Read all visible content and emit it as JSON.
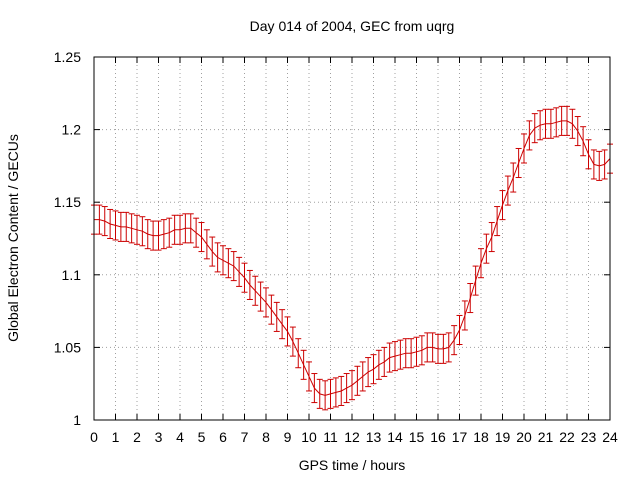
{
  "chart_data": {
    "type": "line",
    "title": "Day 014 of 2004, GEC from uqrg",
    "xlabel": "GPS time / hours",
    "ylabel": "Global Electron Content / GECUs",
    "xlim": [
      0,
      24
    ],
    "ylim": [
      1,
      1.25
    ],
    "xticks": [
      "0",
      "1",
      "2",
      "3",
      "4",
      "5",
      "6",
      "7",
      "8",
      "9",
      "10",
      "11",
      "12",
      "13",
      "14",
      "15",
      "16",
      "17",
      "18",
      "19",
      "20",
      "21",
      "22",
      "23",
      "24"
    ],
    "yticks": [
      "1",
      "1.05",
      "1.1",
      "1.15",
      "1.2",
      "1.25"
    ],
    "grid": true,
    "series_color": "#cc0000",
    "series": [
      {
        "x": [
          0,
          0.25,
          0.5,
          0.75,
          1,
          1.25,
          1.5,
          1.75,
          2,
          2.25,
          2.5,
          2.75,
          3,
          3.25,
          3.5,
          3.75,
          4,
          4.25,
          4.5,
          4.75,
          5,
          5.25,
          5.5,
          5.75,
          6,
          6.25,
          6.5,
          6.75,
          7,
          7.25,
          7.5,
          7.75,
          8,
          8.25,
          8.5,
          8.75,
          9,
          9.25,
          9.5,
          9.75,
          10,
          10.25,
          10.5,
          10.75,
          11,
          11.25,
          11.5,
          11.75,
          12,
          12.25,
          12.5,
          12.75,
          13,
          13.25,
          13.5,
          13.75,
          14,
          14.25,
          14.5,
          14.75,
          15,
          15.25,
          15.5,
          15.75,
          16,
          16.25,
          16.5,
          16.75,
          17,
          17.25,
          17.5,
          17.75,
          18,
          18.25,
          18.5,
          18.75,
          19,
          19.25,
          19.5,
          19.75,
          20,
          20.25,
          20.5,
          20.75,
          21,
          21.25,
          21.5,
          21.75,
          22,
          22.25,
          22.5,
          22.75,
          23,
          23.25,
          23.5,
          23.75,
          24
        ],
        "y": [
          1.138,
          1.138,
          1.137,
          1.135,
          1.134,
          1.133,
          1.133,
          1.132,
          1.131,
          1.13,
          1.128,
          1.127,
          1.127,
          1.128,
          1.129,
          1.131,
          1.131,
          1.132,
          1.132,
          1.129,
          1.126,
          1.121,
          1.116,
          1.112,
          1.11,
          1.108,
          1.106,
          1.102,
          1.098,
          1.093,
          1.089,
          1.085,
          1.081,
          1.076,
          1.071,
          1.066,
          1.061,
          1.054,
          1.046,
          1.038,
          1.03,
          1.022,
          1.018,
          1.017,
          1.018,
          1.019,
          1.02,
          1.022,
          1.024,
          1.027,
          1.03,
          1.033,
          1.035,
          1.038,
          1.04,
          1.043,
          1.044,
          1.045,
          1.046,
          1.046,
          1.047,
          1.048,
          1.05,
          1.05,
          1.049,
          1.049,
          1.05,
          1.055,
          1.062,
          1.072,
          1.084,
          1.096,
          1.108,
          1.118,
          1.126,
          1.137,
          1.148,
          1.158,
          1.167,
          1.177,
          1.187,
          1.196,
          1.201,
          1.203,
          1.204,
          1.204,
          1.205,
          1.206,
          1.206,
          1.204,
          1.199,
          1.192,
          1.183,
          1.176,
          1.175,
          1.176,
          1.18
        ],
        "error": 0.01
      }
    ]
  }
}
